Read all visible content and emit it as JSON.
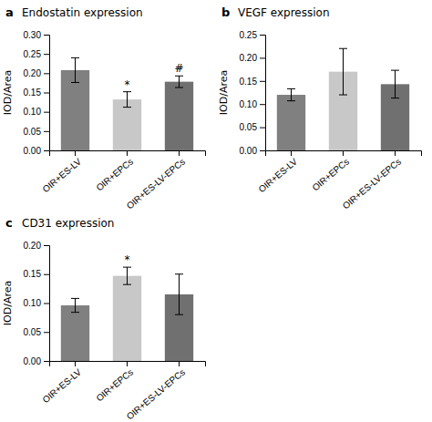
{
  "chart_data": [
    {
      "type": "bar",
      "panel_label": "a",
      "title": "Endostatin expression",
      "categories": [
        "OIR+ES-LV",
        "OIR+EPCs",
        "OIR+ES-LV-EPCs"
      ],
      "values": [
        0.208,
        0.132,
        0.178
      ],
      "errors": [
        0.032,
        0.02,
        0.015
      ],
      "colors": [
        "#808080",
        "#c8c8c8",
        "#707070"
      ],
      "ylim": [
        0,
        0.3
      ],
      "yticks": [
        {
          "value": 0.0,
          "label": "0.00"
        },
        {
          "value": 0.05,
          "label": "0.05"
        },
        {
          "value": 0.1,
          "label": "0.10"
        },
        {
          "value": 0.15,
          "label": "0.15"
        },
        {
          "value": 0.2,
          "label": "0.20"
        },
        {
          "value": 0.25,
          "label": "0.25"
        },
        {
          "value": 0.3,
          "label": "0.30"
        }
      ],
      "ylabel": "IOD/Area",
      "annotations": [
        {
          "category": "OIR+EPCs",
          "text": "*"
        },
        {
          "category": "OIR+ES-LV-EPCs",
          "text": "#"
        }
      ]
    },
    {
      "type": "bar",
      "panel_label": "b",
      "title": "VEGF expression",
      "categories": [
        "OIR+ES-LV",
        "OIR+EPCs",
        "OIR+ES-LV-EPCs"
      ],
      "values": [
        0.12,
        0.17,
        0.143
      ],
      "errors": [
        0.013,
        0.05,
        0.03
      ],
      "colors": [
        "#808080",
        "#c8c8c8",
        "#707070"
      ],
      "ylim": [
        0,
        0.25
      ],
      "yticks": [
        {
          "value": 0.0,
          "label": "0.00"
        },
        {
          "value": 0.05,
          "label": "0.05"
        },
        {
          "value": 0.1,
          "label": "0.10"
        },
        {
          "value": 0.15,
          "label": "0.15"
        },
        {
          "value": 0.2,
          "label": "0.20"
        },
        {
          "value": 0.25,
          "label": "0.25"
        }
      ],
      "ylabel": "IOD/Area",
      "annotations": []
    },
    {
      "type": "bar",
      "panel_label": "c",
      "title": "CD31 expression",
      "categories": [
        "OIR+ES-LV",
        "OIR+EPCs",
        "OIR+ES-LV-EPCs"
      ],
      "values": [
        0.096,
        0.147,
        0.115
      ],
      "errors": [
        0.012,
        0.015,
        0.035
      ],
      "colors": [
        "#808080",
        "#c8c8c8",
        "#707070"
      ],
      "ylim": [
        0,
        0.2
      ],
      "yticks": [
        {
          "value": 0.0,
          "label": "0.00"
        },
        {
          "value": 0.05,
          "label": "0.05"
        },
        {
          "value": 0.1,
          "label": "0.10"
        },
        {
          "value": 0.15,
          "label": "0.15"
        },
        {
          "value": 0.2,
          "label": "0.20"
        }
      ],
      "ylabel": "IOD/Area",
      "annotations": [
        {
          "category": "OIR+EPCs",
          "text": "*"
        }
      ]
    }
  ]
}
